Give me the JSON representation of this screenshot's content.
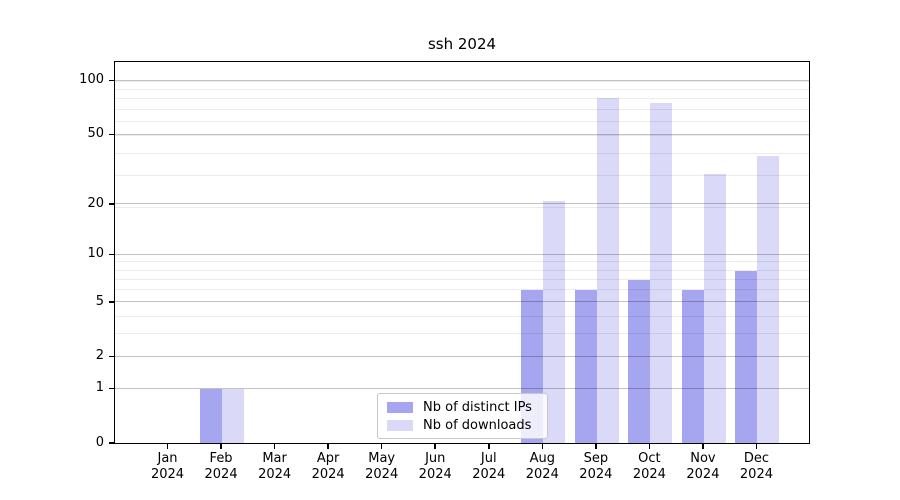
{
  "title": "ssh 2024",
  "chart_data": {
    "type": "bar",
    "title": "ssh 2024",
    "categories": [
      "Jan",
      "Feb",
      "Mar",
      "Apr",
      "May",
      "Jun",
      "Jul",
      "Aug",
      "Sep",
      "Oct",
      "Nov",
      "Dec"
    ],
    "category_year": "2024",
    "series": [
      {
        "name": "Nb of distinct IPs",
        "color": "#a5a5f0",
        "values": [
          0,
          1,
          0,
          0,
          0,
          0,
          0,
          6,
          6,
          7,
          6,
          8
        ]
      },
      {
        "name": "Nb of downloads",
        "color": "#dadaf8",
        "values": [
          0,
          1,
          0,
          0,
          0,
          0,
          0,
          21,
          80,
          75,
          30,
          38
        ]
      }
    ],
    "yscale": "log1p",
    "yticks": [
      0,
      1,
      2,
      5,
      10,
      20,
      50,
      100
    ],
    "ylim": [
      0,
      126
    ],
    "minor_grid_levels": [
      3,
      4,
      6,
      7,
      8,
      9,
      19,
      29,
      39,
      49,
      59,
      69,
      79,
      89,
      99
    ],
    "grid": "on",
    "legend_position": "lower-center",
    "colors": {
      "series1": "#a5a5f0",
      "series2": "#dadaf8",
      "grid_major": "#c2c2c2",
      "grid_minor": "#ebebeb",
      "spine": "#000000",
      "background": "#ffffff"
    }
  }
}
